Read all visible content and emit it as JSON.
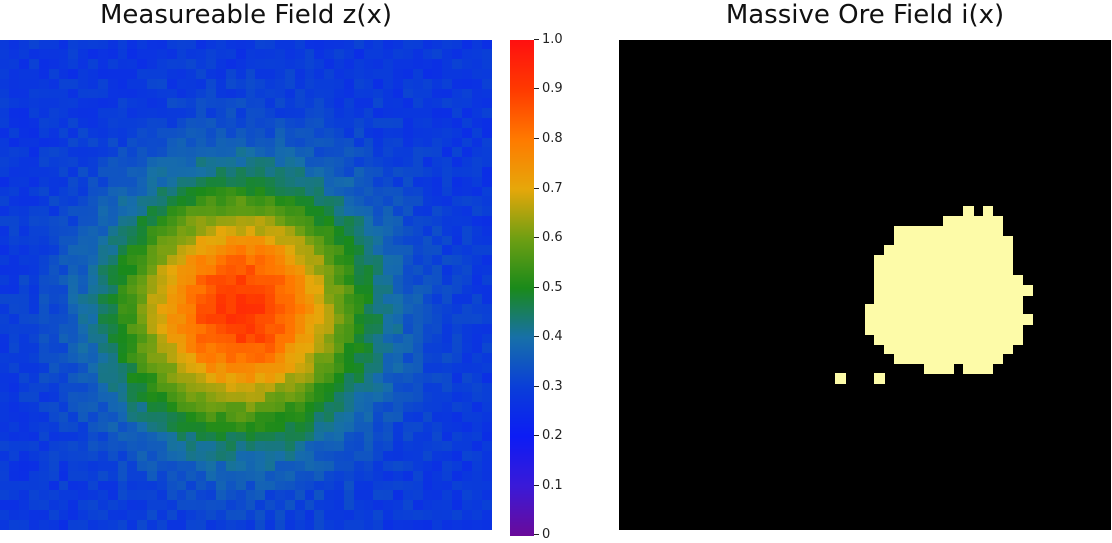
{
  "chart_data": [
    {
      "type": "heatmap",
      "title": "Measureable Field z(x)",
      "grid": "off",
      "colormap": "rainbow",
      "clim": [
        0,
        1
      ],
      "colorbar": {
        "ticks": [
          0,
          0.1,
          0.2,
          0.3,
          0.4,
          0.5,
          0.6,
          0.7,
          0.8,
          0.9,
          1.0
        ],
        "tick_labels": [
          "0",
          "0.1",
          "0.2",
          "0.3",
          "0.4",
          "0.5",
          "0.6",
          "0.7",
          "0.8",
          "0.9",
          "1.0"
        ],
        "colors": [
          "#6a0a9a",
          "#3a1ad8",
          "#0c1cf5",
          "#0a3ed8",
          "#1770a8",
          "#1a8a1a",
          "#6f9f13",
          "#e6a70a",
          "#ff7a00",
          "#ff3a00",
          "#ff1010"
        ]
      },
      "grid_size": [
        50,
        50
      ],
      "field": {
        "background_value": 0.28,
        "peak_value": 0.92,
        "peak_center": [
          0.49,
          0.55
        ],
        "spread": 0.17,
        "noise": 0.03
      }
    },
    {
      "type": "heatmap",
      "title": "Massive Ore Field i(x)",
      "grid": "off",
      "values": [
        0,
        1
      ],
      "colors": {
        "0": "#000000",
        "1": "#fdfba8"
      },
      "grid_size": [
        50,
        50
      ],
      "ore_body": {
        "rows": [
          {
            "row": 17,
            "cols": [
              [
                35,
                35
              ],
              [
                37,
                37
              ]
            ]
          },
          {
            "row": 18,
            "cols": [
              [
                33,
                38
              ]
            ]
          },
          {
            "row": 19,
            "cols": [
              [
                28,
                38
              ]
            ]
          },
          {
            "row": 20,
            "cols": [
              [
                28,
                39
              ]
            ]
          },
          {
            "row": 21,
            "cols": [
              [
                27,
                39
              ]
            ]
          },
          {
            "row": 22,
            "cols": [
              [
                26,
                39
              ]
            ]
          },
          {
            "row": 23,
            "cols": [
              [
                26,
                39
              ]
            ]
          },
          {
            "row": 24,
            "cols": [
              [
                26,
                40
              ]
            ]
          },
          {
            "row": 25,
            "cols": [
              [
                26,
                41
              ]
            ]
          },
          {
            "row": 26,
            "cols": [
              [
                26,
                40
              ]
            ]
          },
          {
            "row": 27,
            "cols": [
              [
                25,
                40
              ]
            ]
          },
          {
            "row": 28,
            "cols": [
              [
                25,
                41
              ]
            ]
          },
          {
            "row": 29,
            "cols": [
              [
                25,
                40
              ]
            ]
          },
          {
            "row": 30,
            "cols": [
              [
                26,
                40
              ]
            ]
          },
          {
            "row": 31,
            "cols": [
              [
                27,
                39
              ]
            ]
          },
          {
            "row": 32,
            "cols": [
              [
                28,
                38
              ]
            ]
          },
          {
            "row": 33,
            "cols": [
              [
                31,
                33
              ],
              [
                35,
                37
              ]
            ]
          },
          {
            "row": 34,
            "cols": [
              [
                22,
                22
              ],
              [
                26,
                26
              ]
            ]
          }
        ]
      }
    }
  ]
}
